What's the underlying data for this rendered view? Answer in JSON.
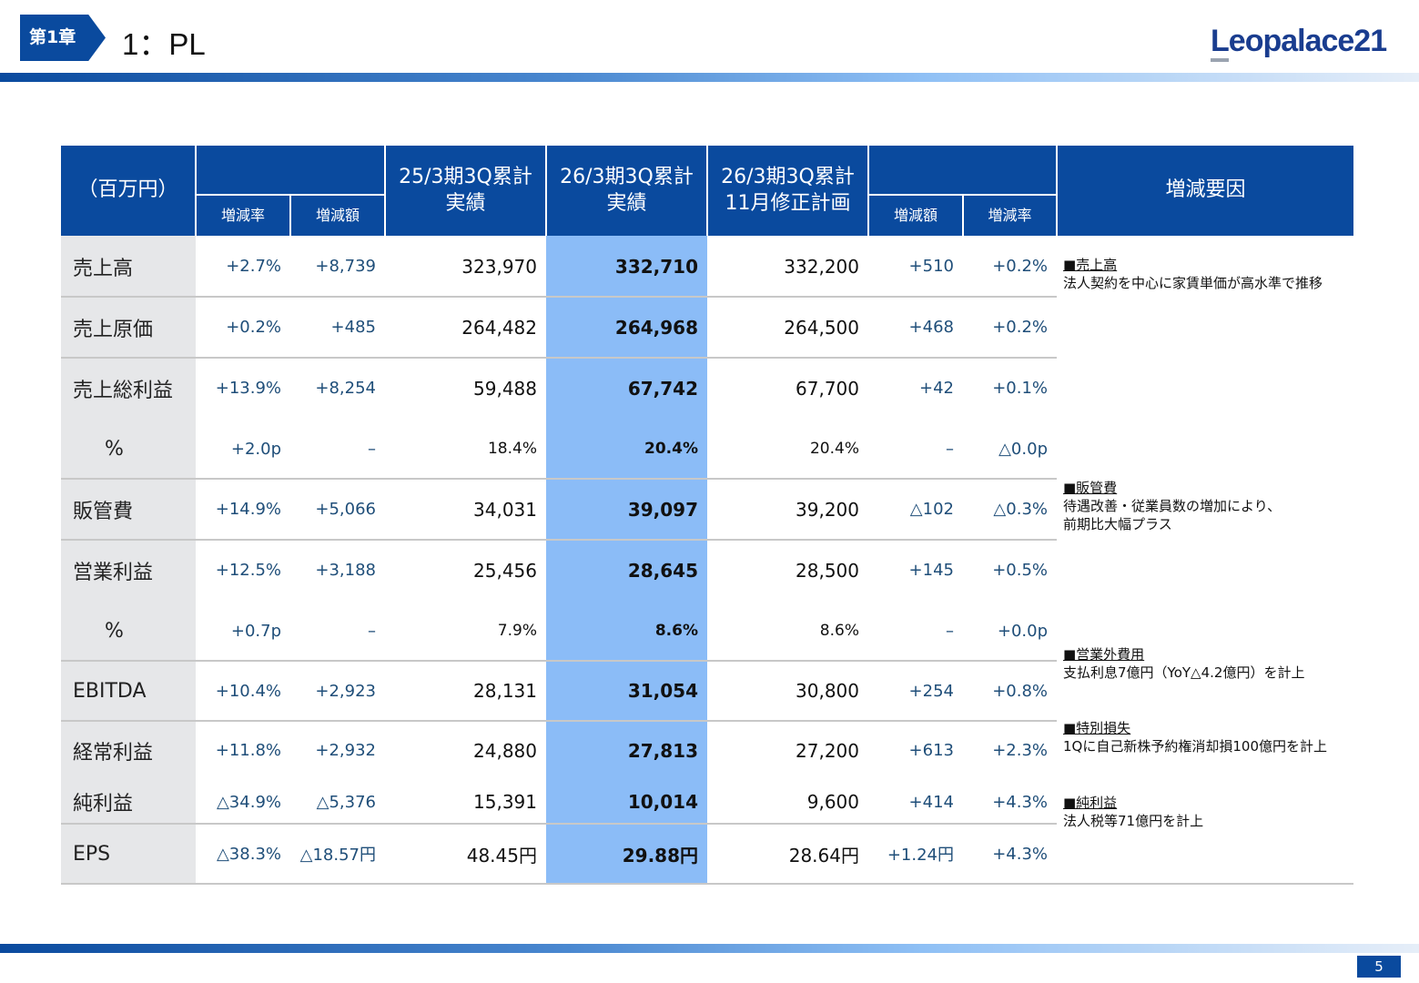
{
  "header": {
    "chapter": "第1章",
    "title": "1：PL",
    "logo": "Leopalace21",
    "page": "5"
  },
  "table": {
    "unit": "（百万円）",
    "col_prev": "25/3期3Q累計\n実績",
    "col_cur": "26/3期3Q累計\n実績",
    "col_plan": "26/3期3Q累計\n11月修正計画",
    "sub_rate": "増減率",
    "sub_amt": "増減額",
    "col_reason": "増減要因",
    "rows": [
      {
        "label": "売上高",
        "yoy_rate": "+2.7%",
        "yoy_amt": "+8,739",
        "prev": "323,970",
        "cur": "332,710",
        "plan": "332,200",
        "vs_amt": "+510",
        "vs_rate": "+0.2%"
      },
      {
        "label": "売上原価",
        "yoy_rate": "+0.2%",
        "yoy_amt": "+485",
        "prev": "264,482",
        "cur": "264,968",
        "plan": "264,500",
        "vs_amt": "+468",
        "vs_rate": "+0.2%"
      },
      {
        "label": "売上総利益",
        "yoy_rate": "+13.9%",
        "yoy_amt": "+8,254",
        "prev": "59,488",
        "cur": "67,742",
        "plan": "67,700",
        "vs_amt": "+42",
        "vs_rate": "+0.1%"
      },
      {
        "label": "%",
        "yoy_rate": "+2.0p",
        "yoy_amt": "–",
        "prev": "18.4%",
        "cur": "20.4%",
        "plan": "20.4%",
        "vs_amt": "–",
        "vs_rate": "△0.0p"
      },
      {
        "label": "販管費",
        "yoy_rate": "+14.9%",
        "yoy_amt": "+5,066",
        "prev": "34,031",
        "cur": "39,097",
        "plan": "39,200",
        "vs_amt": "△102",
        "vs_rate": "△0.3%"
      },
      {
        "label": "営業利益",
        "yoy_rate": "+12.5%",
        "yoy_amt": "+3,188",
        "prev": "25,456",
        "cur": "28,645",
        "plan": "28,500",
        "vs_amt": "+145",
        "vs_rate": "+0.5%"
      },
      {
        "label": "%",
        "yoy_rate": "+0.7p",
        "yoy_amt": "–",
        "prev": "7.9%",
        "cur": "8.6%",
        "plan": "8.6%",
        "vs_amt": "–",
        "vs_rate": "+0.0p"
      },
      {
        "label": "EBITDA",
        "yoy_rate": "+10.4%",
        "yoy_amt": "+2,923",
        "prev": "28,131",
        "cur": "31,054",
        "plan": "30,800",
        "vs_amt": "+254",
        "vs_rate": "+0.8%"
      },
      {
        "label": "経常利益",
        "yoy_rate": "+11.8%",
        "yoy_amt": "+2,932",
        "prev": "24,880",
        "cur": "27,813",
        "plan": "27,200",
        "vs_amt": "+613",
        "vs_rate": "+2.3%"
      },
      {
        "label": "純利益",
        "yoy_rate": "△34.9%",
        "yoy_amt": "△5,376",
        "prev": "15,391",
        "cur": "10,014",
        "plan": "9,600",
        "vs_amt": "+414",
        "vs_rate": "+4.3%"
      },
      {
        "label": "EPS",
        "yoy_rate": "△38.3%",
        "yoy_amt": "△18.57円",
        "prev": "48.45円",
        "cur": "29.88円",
        "plan": "28.64円",
        "vs_amt": "+1.24円",
        "vs_rate": "+4.3%"
      }
    ]
  },
  "reasons": [
    {
      "heading": "■売上高",
      "text": "法人契約を中心に家賃単価が高水準で推移"
    },
    {
      "heading": "■販管費",
      "text": "待遇改善・従業員数の増加により、\n前期比大幅プラス"
    },
    {
      "heading": "■営業外費用",
      "text": "支払利息7億円（YoY△4.2億円）を計上"
    },
    {
      "heading": "■特別損失",
      "text": "1Qに自己新株予約権消却損100億円を計上"
    },
    {
      "heading": "■純利益",
      "text": "法人税等71億円を計上"
    }
  ]
}
